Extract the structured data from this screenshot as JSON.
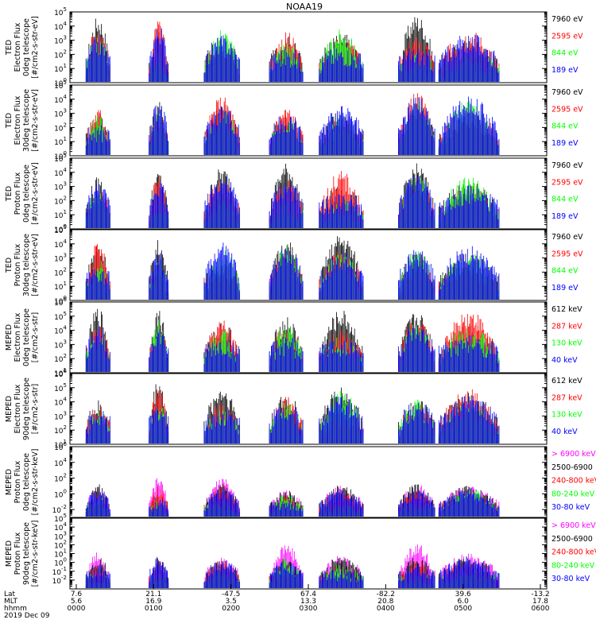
{
  "title": "NOAA19",
  "colors": {
    "black": "#000000",
    "red": "#ff0000",
    "green": "#00ff00",
    "blue": "#0000ff",
    "magenta": "#ff00ff"
  },
  "chart_data": [
    {
      "type": "scatter",
      "ylog": true,
      "ylim_exp": [
        0,
        5
      ],
      "ytick_exps": [
        0,
        1,
        2,
        3,
        4,
        5
      ],
      "ylabel": [
        "TED",
        "Electron Flux",
        "0deg telescope",
        "[#/cm2-s-str-eV]"
      ],
      "series": [
        {
          "name": "7960 eV",
          "color": "#000000"
        },
        {
          "name": "2595 eV",
          "color": "#ff0000"
        },
        {
          "name": "844 eV",
          "color": "#00ff00"
        },
        {
          "name": "189 eV",
          "color": "#0000ff"
        }
      ]
    },
    {
      "type": "scatter",
      "ylog": true,
      "ylim_exp": [
        0,
        5
      ],
      "ytick_exps": [
        0,
        1,
        2,
        3,
        4,
        5
      ],
      "ylabel": [
        "TED",
        "Electron Flux",
        "30deg telescope",
        "[#/cm2-s-str-eV]"
      ],
      "series": [
        {
          "name": "7960 eV",
          "color": "#000000"
        },
        {
          "name": "2595 eV",
          "color": "#ff0000"
        },
        {
          "name": "844 eV",
          "color": "#00ff00"
        },
        {
          "name": "189 eV",
          "color": "#0000ff"
        }
      ]
    },
    {
      "type": "scatter",
      "ylog": true,
      "ylim_exp": [
        0,
        5
      ],
      "ytick_exps": [
        0,
        1,
        2,
        3,
        4,
        5
      ],
      "ylabel": [
        "TED",
        "Proton Flux",
        "0deg telescope",
        "[#/cm2-s-str-eV]"
      ],
      "series": [
        {
          "name": "7960 eV",
          "color": "#000000"
        },
        {
          "name": "2595 eV",
          "color": "#ff0000"
        },
        {
          "name": "844 eV",
          "color": "#00ff00"
        },
        {
          "name": "189 eV",
          "color": "#0000ff"
        }
      ]
    },
    {
      "type": "scatter",
      "ylog": true,
      "ylim_exp": [
        0,
        5
      ],
      "ytick_exps": [
        0,
        1,
        2,
        3,
        4,
        5
      ],
      "ylabel": [
        "TED",
        "Proton Flux",
        "30deg telescope",
        "[#/cm2-s-str-eV]"
      ],
      "series": [
        {
          "name": "7960 eV",
          "color": "#000000"
        },
        {
          "name": "2595 eV",
          "color": "#ff0000"
        },
        {
          "name": "844 eV",
          "color": "#00ff00"
        },
        {
          "name": "189 eV",
          "color": "#0000ff"
        }
      ]
    },
    {
      "type": "scatter",
      "ylog": true,
      "ylim_exp": [
        1,
        6
      ],
      "ytick_exps": [
        1,
        2,
        3,
        4,
        5,
        6
      ],
      "ylabel": [
        "MEPED",
        "Electron Flux",
        "0deg telescope",
        "[#/cm2-s-str]"
      ],
      "series": [
        {
          "name": "612 keV",
          "color": "#000000"
        },
        {
          "name": "287 keV",
          "color": "#ff0000"
        },
        {
          "name": "130 keV",
          "color": "#00ff00"
        },
        {
          "name": "40 keV",
          "color": "#0000ff"
        }
      ]
    },
    {
      "type": "scatter",
      "ylog": true,
      "ylim_exp": [
        1,
        6
      ],
      "ytick_exps": [
        1,
        2,
        3,
        4,
        5,
        6
      ],
      "ylabel": [
        "MEPED",
        "Electron Flux",
        "90deg telescope",
        "[#/cm2-s-str]"
      ],
      "series": [
        {
          "name": "612 keV",
          "color": "#000000"
        },
        {
          "name": "287 keV",
          "color": "#ff0000"
        },
        {
          "name": "130 keV",
          "color": "#00ff00"
        },
        {
          "name": "40 keV",
          "color": "#0000ff"
        }
      ]
    },
    {
      "type": "scatter",
      "ylog": true,
      "ylim_exp": [
        -3,
        6
      ],
      "ytick_exps": [
        -2,
        0,
        2,
        4,
        6
      ],
      "ylabel": [
        "MEPED",
        "Proton Flux",
        "0deg telescope",
        "[#/cm2-s-str-keV]"
      ],
      "series": [
        {
          "name": "> 6900 keV",
          "color": "#ff00ff"
        },
        {
          "name": "2500-6900",
          "color": "#000000"
        },
        {
          "name": "240-800 keV",
          "color": "#ff0000"
        },
        {
          "name": "80-240 keV",
          "color": "#00ff00"
        },
        {
          "name": "30-80 keV",
          "color": "#0000ff"
        }
      ]
    },
    {
      "type": "scatter",
      "ylog": true,
      "ylim_exp": [
        -3,
        5
      ],
      "ytick_exps": [
        -2,
        -1,
        0,
        1,
        2,
        3,
        4,
        5
      ],
      "ylabel": [
        "MEPED",
        "Proton Flux",
        "90deg telescope",
        "[#/cm2-s-str-keV]"
      ],
      "series": [
        {
          "name": "> 6900 keV",
          "color": "#ff00ff"
        },
        {
          "name": "2500-6900",
          "color": "#000000"
        },
        {
          "name": "240-800 keV",
          "color": "#ff0000"
        },
        {
          "name": "80-240 keV",
          "color": "#00ff00"
        },
        {
          "name": "30-80 keV",
          "color": "#0000ff"
        }
      ]
    }
  ],
  "x_axis": {
    "row_labels": [
      "Lat",
      "MLT",
      "hhmm",
      "2019 Dec 09"
    ],
    "ticks": [
      {
        "lat": "7.6",
        "mlt": "5.6",
        "time": "0000"
      },
      {
        "lat": "21.1",
        "mlt": "16.9",
        "time": "0100"
      },
      {
        "lat": "-47.5",
        "mlt": "3.5",
        "time": "0200"
      },
      {
        "lat": "67.4",
        "mlt": "13.3",
        "time": "0300"
      },
      {
        "lat": "-82.2",
        "mlt": "20.8",
        "time": "0400"
      },
      {
        "lat": "39.6",
        "mlt": "6.0",
        "time": "0500"
      },
      {
        "lat": "-13.2",
        "mlt": "17.8",
        "time": "0600"
      }
    ]
  }
}
